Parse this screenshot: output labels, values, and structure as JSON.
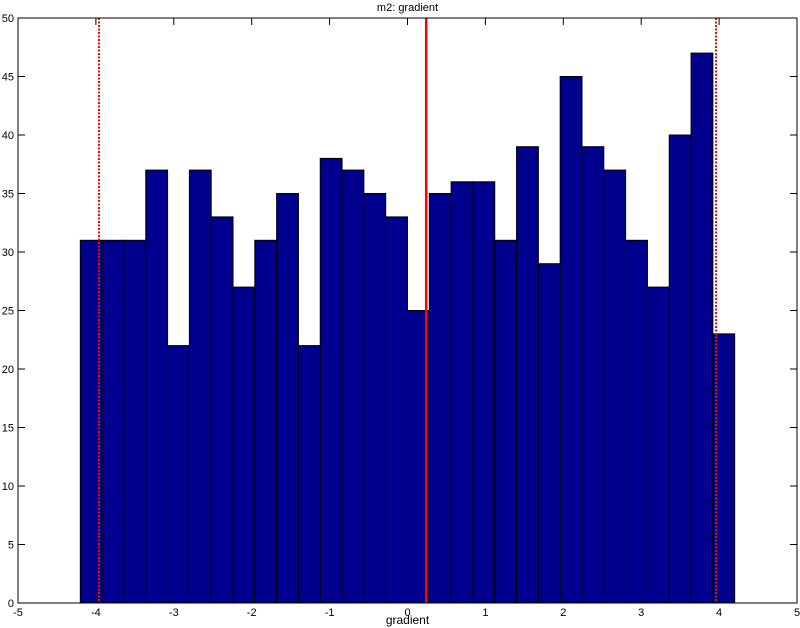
{
  "chart_data": {
    "type": "bar",
    "title": "m2: gradient",
    "xlabel": "gradient",
    "ylabel": "",
    "xlim": [
      -5,
      5
    ],
    "ylim": [
      0,
      50
    ],
    "xticks": [
      -5,
      -4,
      -3,
      -2,
      -1,
      0,
      1,
      2,
      3,
      4,
      5
    ],
    "yticks": [
      0,
      5,
      10,
      15,
      20,
      25,
      30,
      35,
      40,
      45,
      50
    ],
    "grid": false,
    "bin_width": 0.28,
    "bin_centers": [
      -4.06,
      -3.78,
      -3.5,
      -3.22,
      -2.94,
      -2.66,
      -2.38,
      -2.1,
      -1.82,
      -1.54,
      -1.26,
      -0.98,
      -0.7,
      -0.42,
      -0.14,
      0.14,
      0.42,
      0.7,
      0.98,
      1.26,
      1.54,
      1.82,
      2.1,
      2.38,
      2.66,
      2.94,
      3.22,
      3.5,
      3.78,
      4.06
    ],
    "values": [
      31,
      31,
      31,
      37,
      22,
      37,
      33,
      27,
      31,
      35,
      22,
      38,
      37,
      35,
      33,
      25,
      35,
      36,
      36,
      31,
      39,
      29,
      45,
      39,
      37,
      31,
      27,
      40,
      47,
      23
    ],
    "bar_color": "#00008f",
    "reference_lines": [
      {
        "x": 0.24,
        "style": "solid",
        "color": "#ff0000"
      },
      {
        "x": -3.96,
        "style": "dotted",
        "color": "#ff0000"
      },
      {
        "x": 3.96,
        "style": "dotted",
        "color": "#ff0000"
      }
    ]
  }
}
